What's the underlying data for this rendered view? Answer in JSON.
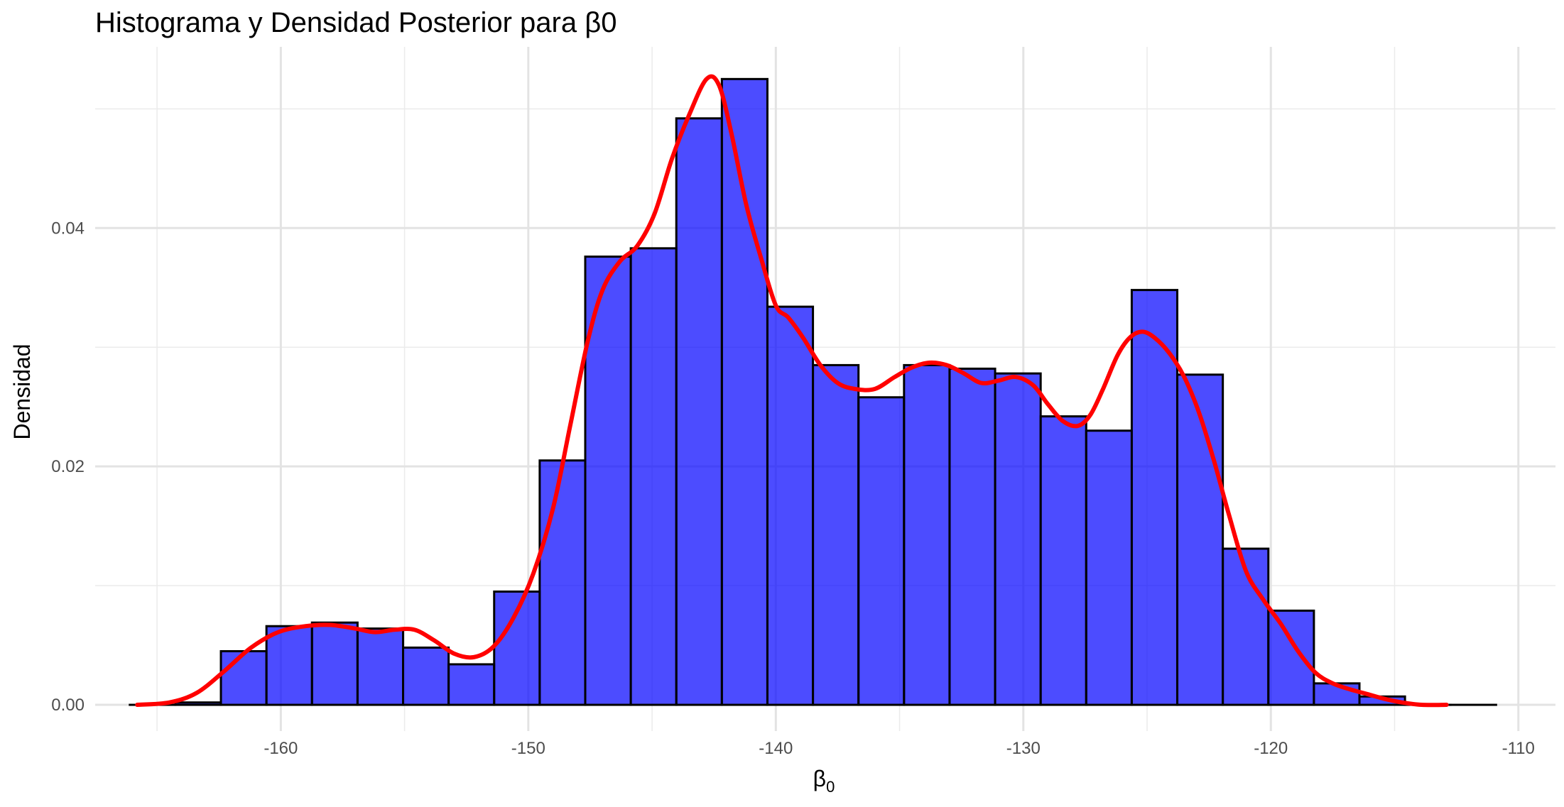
{
  "chart_data": {
    "type": "bar",
    "title": "Histograma y Densidad Posterior para β0",
    "xlabel": "β0",
    "ylabel": "Densidad",
    "xlim": [
      -167.5,
      -108.5
    ],
    "ylim": [
      -0.0022,
      0.0552
    ],
    "x_ticks": [
      -160,
      -150,
      -140,
      -130,
      -120,
      -110
    ],
    "x_tick_labels": [
      "-160",
      "-150",
      "-140",
      "-130",
      "-120",
      "-110"
    ],
    "y_ticks": [
      0.0,
      0.02,
      0.04
    ],
    "y_tick_labels": [
      "0.00",
      "0.02",
      "0.04"
    ],
    "grid": true,
    "bin_width": 1.84,
    "series": [
      {
        "kind": "histogram",
        "fill": "#0000ff",
        "fill_opacity": 0.7,
        "stroke": "#000000",
        "bins": [
          {
            "start": -166.1,
            "end": -164.26,
            "value": 0.0
          },
          {
            "start": -164.26,
            "end": -162.42,
            "value": 0.0002
          },
          {
            "start": -162.42,
            "end": -160.58,
            "value": 0.0045
          },
          {
            "start": -160.58,
            "end": -158.74,
            "value": 0.0066
          },
          {
            "start": -158.74,
            "end": -156.9,
            "value": 0.0069
          },
          {
            "start": -156.9,
            "end": -155.06,
            "value": 0.0064
          },
          {
            "start": -155.06,
            "end": -153.22,
            "value": 0.0048
          },
          {
            "start": -153.22,
            "end": -151.38,
            "value": 0.0034
          },
          {
            "start": -151.38,
            "end": -149.54,
            "value": 0.0095
          },
          {
            "start": -149.54,
            "end": -147.7,
            "value": 0.0205
          },
          {
            "start": -147.7,
            "end": -145.86,
            "value": 0.0376
          },
          {
            "start": -145.86,
            "end": -144.02,
            "value": 0.0383
          },
          {
            "start": -144.02,
            "end": -142.18,
            "value": 0.0492
          },
          {
            "start": -142.18,
            "end": -140.34,
            "value": 0.0525
          },
          {
            "start": -140.34,
            "end": -138.5,
            "value": 0.0334
          },
          {
            "start": -138.5,
            "end": -136.66,
            "value": 0.0285
          },
          {
            "start": -136.66,
            "end": -134.82,
            "value": 0.0258
          },
          {
            "start": -134.82,
            "end": -132.98,
            "value": 0.0285
          },
          {
            "start": -132.98,
            "end": -131.14,
            "value": 0.0282
          },
          {
            "start": -131.14,
            "end": -129.3,
            "value": 0.0278
          },
          {
            "start": -129.3,
            "end": -127.46,
            "value": 0.0242
          },
          {
            "start": -127.46,
            "end": -125.62,
            "value": 0.023
          },
          {
            "start": -125.62,
            "end": -123.78,
            "value": 0.0348
          },
          {
            "start": -123.78,
            "end": -121.94,
            "value": 0.0277
          },
          {
            "start": -121.94,
            "end": -120.1,
            "value": 0.0131
          },
          {
            "start": -120.1,
            "end": -118.26,
            "value": 0.0079
          },
          {
            "start": -118.26,
            "end": -116.42,
            "value": 0.0018
          },
          {
            "start": -116.42,
            "end": -114.58,
            "value": 0.0007
          },
          {
            "start": -114.58,
            "end": -112.74,
            "value": 0.0
          },
          {
            "start": -112.74,
            "end": -110.9,
            "value": 0.0
          }
        ]
      },
      {
        "kind": "density",
        "color": "#ff0000",
        "x": [
          -165.8,
          -164.5,
          -163.4,
          -162.3,
          -161.2,
          -160.1,
          -159.0,
          -158.0,
          -157.0,
          -156.2,
          -155.4,
          -154.6,
          -153.8,
          -153.0,
          -152.2,
          -151.4,
          -150.6,
          -149.8,
          -149.0,
          -148.3,
          -147.6,
          -147.0,
          -146.3,
          -145.6,
          -144.9,
          -144.2,
          -143.5,
          -142.8,
          -142.3,
          -141.8,
          -141.2,
          -140.6,
          -140.0,
          -139.5,
          -138.9,
          -138.2,
          -137.5,
          -136.8,
          -136.0,
          -135.2,
          -134.5,
          -133.8,
          -133.1,
          -132.4,
          -131.7,
          -131.0,
          -130.3,
          -129.6,
          -129.0,
          -128.4,
          -127.8,
          -127.3,
          -126.8,
          -126.2,
          -125.7,
          -125.2,
          -124.7,
          -124.1,
          -123.5,
          -122.9,
          -122.3,
          -121.7,
          -121.0,
          -120.3,
          -119.6,
          -118.9,
          -118.2,
          -117.5,
          -116.8,
          -116.1,
          -115.4,
          -114.7,
          -113.9,
          -112.9
        ],
        "y": [
          0.0,
          0.0002,
          0.001,
          0.0028,
          0.0048,
          0.0061,
          0.0066,
          0.0067,
          0.0064,
          0.0061,
          0.0063,
          0.0063,
          0.0054,
          0.0043,
          0.004,
          0.0049,
          0.0073,
          0.011,
          0.0165,
          0.0235,
          0.0305,
          0.0348,
          0.0372,
          0.0385,
          0.0412,
          0.0458,
          0.0495,
          0.0525,
          0.052,
          0.048,
          0.042,
          0.0375,
          0.0335,
          0.0325,
          0.0308,
          0.0285,
          0.027,
          0.0265,
          0.0265,
          0.0275,
          0.0283,
          0.0287,
          0.0285,
          0.0278,
          0.027,
          0.0272,
          0.0275,
          0.0268,
          0.0252,
          0.0238,
          0.0234,
          0.0243,
          0.0264,
          0.0293,
          0.0308,
          0.0313,
          0.0308,
          0.0295,
          0.0275,
          0.0245,
          0.0205,
          0.016,
          0.0112,
          0.0088,
          0.0068,
          0.0045,
          0.0027,
          0.0018,
          0.0013,
          0.0009,
          0.0005,
          0.0002,
          0.0,
          0.0
        ]
      }
    ]
  }
}
